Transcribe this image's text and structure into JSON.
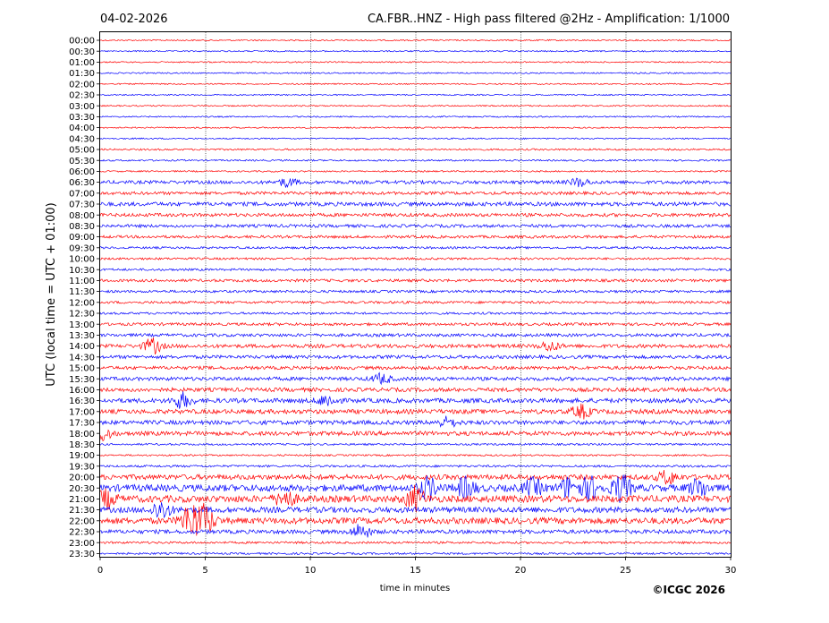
{
  "header": {
    "date": "04-02-2026",
    "title": "CA.FBR..HNZ - High pass filtered @2Hz - Amplification: 1/1000"
  },
  "footer": {
    "copyright": "©ICGC 2026"
  },
  "chart_data": {
    "type": "line",
    "xlabel": "time in minutes",
    "ylabel": "UTC (local time = UTC + 01:00)",
    "xlim": [
      0,
      30
    ],
    "x_ticks": [
      "0",
      "5",
      "10",
      "15",
      "20",
      "25",
      "30"
    ],
    "vertical_gridlines_at": [
      5,
      10,
      15,
      20,
      25
    ],
    "row_labels": [
      "00:00",
      "00:30",
      "01:00",
      "01:30",
      "02:00",
      "02:30",
      "03:00",
      "03:30",
      "04:00",
      "04:30",
      "05:00",
      "05:30",
      "06:00",
      "06:30",
      "07:00",
      "07:30",
      "08:00",
      "08:30",
      "09:00",
      "09:30",
      "10:00",
      "10:30",
      "11:00",
      "11:30",
      "12:00",
      "12:30",
      "13:00",
      "13:30",
      "14:00",
      "14:30",
      "15:00",
      "15:30",
      "16:00",
      "16:30",
      "17:00",
      "17:30",
      "18:00",
      "18:30",
      "19:00",
      "19:30",
      "20:00",
      "20:30",
      "21:00",
      "21:30",
      "22:00",
      "22:30",
      "23:00",
      "23:30"
    ],
    "colors": {
      "even_rows": "#ff0000",
      "odd_rows": "#0000ff"
    },
    "activity_level": [
      0.05,
      0.05,
      0.05,
      0.05,
      0.05,
      0.05,
      0.05,
      0.05,
      0.05,
      0.05,
      0.12,
      0.1,
      0.08,
      0.4,
      0.35,
      0.5,
      0.4,
      0.35,
      0.3,
      0.2,
      0.2,
      0.2,
      0.3,
      0.25,
      0.25,
      0.2,
      0.3,
      0.35,
      0.45,
      0.4,
      0.4,
      0.45,
      0.5,
      0.6,
      0.6,
      0.55,
      0.55,
      0.15,
      0.1,
      0.2,
      0.7,
      1.0,
      1.0,
      0.8,
      0.9,
      0.5,
      0.2,
      0.15
    ],
    "bursts": [
      {
        "row": 13,
        "minute": 8.9,
        "amp": 0.5
      },
      {
        "row": 13,
        "minute": 22.8,
        "amp": 0.5
      },
      {
        "row": 28,
        "minute": 2.5,
        "amp": 0.9
      },
      {
        "row": 28,
        "minute": 21.4,
        "amp": 0.6
      },
      {
        "row": 31,
        "minute": 13.4,
        "amp": 0.6
      },
      {
        "row": 33,
        "minute": 3.9,
        "amp": 0.9
      },
      {
        "row": 33,
        "minute": 10.8,
        "amp": 0.7
      },
      {
        "row": 34,
        "minute": 22.9,
        "amp": 0.8
      },
      {
        "row": 35,
        "minute": 16.5,
        "amp": 0.6
      },
      {
        "row": 36,
        "minute": 0.1,
        "amp": 0.9
      },
      {
        "row": 40,
        "minute": 27.0,
        "amp": 0.8
      },
      {
        "row": 41,
        "minute": 15.6,
        "amp": 1.3
      },
      {
        "row": 41,
        "minute": 17.4,
        "amp": 1.2
      },
      {
        "row": 41,
        "minute": 20.6,
        "amp": 1.0
      },
      {
        "row": 41,
        "minute": 22.3,
        "amp": 1.2
      },
      {
        "row": 41,
        "minute": 23.3,
        "amp": 1.3
      },
      {
        "row": 41,
        "minute": 24.8,
        "amp": 1.6
      },
      {
        "row": 41,
        "minute": 28.5,
        "amp": 1.1
      },
      {
        "row": 42,
        "minute": 0.3,
        "amp": 1.0
      },
      {
        "row": 42,
        "minute": 15.0,
        "amp": 1.4
      },
      {
        "row": 42,
        "minute": 8.8,
        "amp": 1.0
      },
      {
        "row": 43,
        "minute": 2.9,
        "amp": 1.1
      },
      {
        "row": 44,
        "minute": 4.3,
        "amp": 2.0
      },
      {
        "row": 44,
        "minute": 5.0,
        "amp": 1.7
      },
      {
        "row": 45,
        "minute": 12.4,
        "amp": 0.9
      }
    ]
  }
}
